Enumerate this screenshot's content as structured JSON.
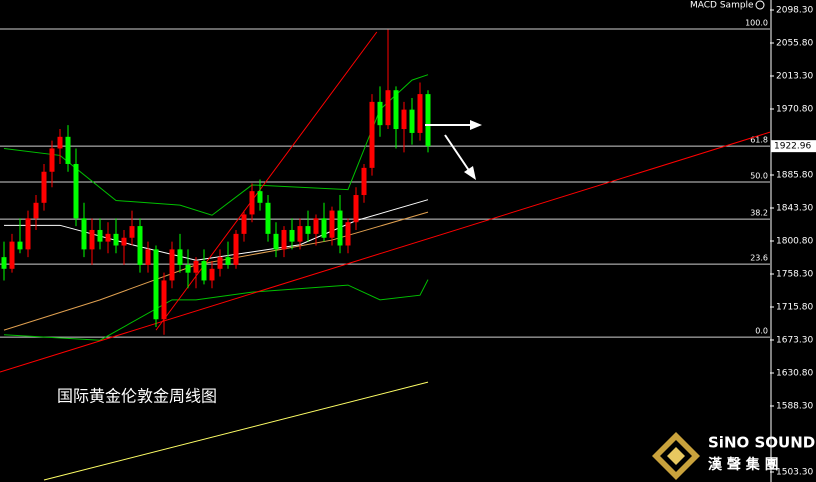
{
  "chart_data": {
    "type": "candlestick",
    "title": "MACD Sample",
    "annotation": "国际黄金伦敦金周线图",
    "logo": {
      "name": "SiNO SOUND",
      "subtitle": "漢 聲 集 團"
    },
    "up_color": "#ff0000",
    "down_color": "#00ff00",
    "xlim": [
      -0.5,
      95.75
    ],
    "ylim": [
      1490.4,
      2111.2
    ],
    "yticks": [
      {
        "value": 2098.3,
        "label": "2098.30"
      },
      {
        "value": 2055.8,
        "label": "2055.80"
      },
      {
        "value": 2013.3,
        "label": "2013.30"
      },
      {
        "value": 1970.8,
        "label": "1970.80"
      },
      {
        "value": 1885.8,
        "label": "1885.80"
      },
      {
        "value": 1843.3,
        "label": "1843.30"
      },
      {
        "value": 1800.8,
        "label": "1800.80"
      },
      {
        "value": 1758.3,
        "label": "1758.30"
      },
      {
        "value": 1715.8,
        "label": "1715.80"
      },
      {
        "value": 1673.3,
        "label": "1673.30"
      },
      {
        "value": 1630.8,
        "label": "1630.80"
      },
      {
        "value": 1588.3,
        "label": "1588.30"
      },
      {
        "value": 1503.3,
        "label": "1503.30"
      }
    ],
    "fib_levels": [
      {
        "value": 2073.8,
        "label": "100.0"
      },
      {
        "value": 1923,
        "label": "61.8"
      },
      {
        "value": 1876.8,
        "label": "50.0"
      },
      {
        "value": 1829,
        "label": "38.2"
      },
      {
        "value": 1771,
        "label": "23.6"
      },
      {
        "value": 1677,
        "label": "0.0"
      }
    ],
    "open": [
      1780,
      1765,
      1800,
      1790,
      1830,
      1850,
      1890,
      1920,
      1935,
      1900,
      1830,
      1790,
      1815,
      1800,
      1810,
      1795,
      1805,
      1820,
      1770,
      1790,
      1700,
      1750,
      1790,
      1770,
      1760,
      1775,
      1750,
      1765,
      1780,
      1770,
      1810,
      1835,
      1865,
      1850,
      1810,
      1790,
      1815,
      1800,
      1820,
      1810,
      1830,
      1805,
      1840,
      1795,
      1825,
      1860,
      1895,
      1980,
      1950,
      1995,
      1945,
      1970,
      1940,
      1990
    ],
    "high": [
      1800,
      1810,
      1830,
      1840,
      1860,
      1900,
      1930,
      1945,
      1950,
      1920,
      1850,
      1830,
      1830,
      1825,
      1830,
      1815,
      1840,
      1830,
      1800,
      1795,
      1760,
      1800,
      1810,
      1790,
      1780,
      1790,
      1775,
      1790,
      1800,
      1815,
      1840,
      1875,
      1880,
      1860,
      1825,
      1820,
      1830,
      1830,
      1840,
      1835,
      1850,
      1845,
      1860,
      1830,
      1870,
      1900,
      1990,
      2000,
      2073,
      2000,
      1980,
      1985,
      2005,
      1995
    ],
    "low": [
      1750,
      1760,
      1785,
      1780,
      1815,
      1840,
      1870,
      1900,
      1890,
      1820,
      1780,
      1770,
      1790,
      1785,
      1785,
      1770,
      1795,
      1760,
      1760,
      1690,
      1680,
      1740,
      1760,
      1740,
      1740,
      1745,
      1740,
      1755,
      1765,
      1765,
      1800,
      1825,
      1840,
      1800,
      1780,
      1780,
      1790,
      1790,
      1800,
      1795,
      1800,
      1795,
      1785,
      1785,
      1815,
      1850,
      1885,
      1935,
      1945,
      1920,
      1915,
      1925,
      1930,
      1915
    ],
    "close": [
      1765,
      1800,
      1790,
      1830,
      1850,
      1890,
      1920,
      1935,
      1900,
      1830,
      1790,
      1815,
      1800,
      1810,
      1795,
      1805,
      1820,
      1770,
      1790,
      1700,
      1750,
      1790,
      1770,
      1760,
      1775,
      1750,
      1765,
      1780,
      1770,
      1810,
      1835,
      1865,
      1850,
      1810,
      1790,
      1815,
      1800,
      1820,
      1810,
      1830,
      1805,
      1840,
      1795,
      1825,
      1860,
      1895,
      1980,
      1950,
      1995,
      1945,
      1970,
      1940,
      1990,
      1922.96
    ],
    "series": [
      {
        "color": "#00c000",
        "x": [
          0,
          7,
          14,
          22,
          26,
          31,
          43,
          47,
          51,
          53
        ],
        "values": [
          1920,
          1911,
          1853,
          1847,
          1834,
          1873,
          1867,
          1970,
          2008,
          2015
        ]
      },
      {
        "color": "#00c000",
        "x": [
          0,
          12,
          21,
          24,
          31,
          43,
          47,
          52,
          53
        ],
        "values": [
          1680,
          1673,
          1725,
          1725,
          1735,
          1744,
          1725,
          1731,
          1751
        ]
      },
      {
        "color": "#ffffff",
        "x": [
          0,
          7,
          16,
          24,
          37,
          44,
          53
        ],
        "values": [
          1821,
          1821,
          1796,
          1776,
          1796,
          1827,
          1854
        ]
      },
      {
        "color": "#e0a050",
        "x": [
          0,
          12,
          24,
          41,
          53
        ],
        "values": [
          1686,
          1725,
          1770,
          1802,
          1838
        ]
      },
      {
        "color": "#ffff66",
        "x": [
          5,
          53
        ],
        "values": [
          1493,
          1619
        ]
      },
      {
        "color": "#ff0000",
        "x": [
          -0.5,
          95.75
        ],
        "values": [
          1632,
          1941
        ]
      },
      {
        "color": "#ff0000",
        "x": [
          19,
          46.6
        ],
        "values": [
          1686,
          2070
        ]
      }
    ]
  }
}
